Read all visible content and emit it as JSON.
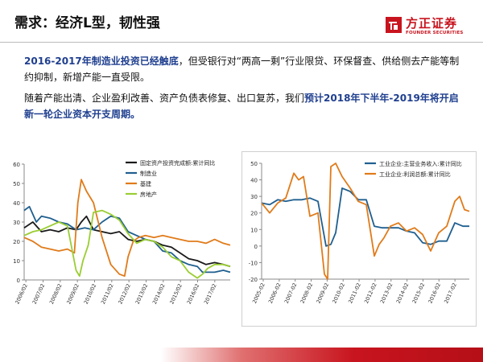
{
  "title": "需求：经济L型，韧性强",
  "logo": {
    "name": "方正证券",
    "en": "FOUNDER SECURITIES"
  },
  "paragraph1": {
    "highlight": "2016-2017年制造业投资已经触底",
    "text": "，但受银行对“两高一剩”行业限贷、环保督查、供给侧去产能等制约抑制，新增产能一直受限。"
  },
  "paragraph2": {
    "text": "随着产能出清、企业盈利改善、资产负债表修复、出口复苏，我们",
    "highlight": "预计2018年下半年-2019年将开启新一轮企业资本开支周期。"
  },
  "chart_data": [
    {
      "type": "line",
      "ylim": [
        0,
        60
      ],
      "yticks": [
        "0",
        "10",
        "20",
        "30",
        "40",
        "50",
        "60"
      ],
      "x_ticks": [
        "2006/02",
        "2007/02",
        "2008/02",
        "2009/02",
        "2010/02",
        "2011/02",
        "2012/02",
        "2013/02",
        "2014/02",
        "2015/02",
        "2016/02",
        "2017/02"
      ],
      "x_range": [
        2006.0,
        2017.9
      ],
      "series": [
        {
          "name": "固定资产投资完成额:累计同比",
          "color": "#1a1a1a",
          "x": [
            2006.0,
            2006.5,
            2007.0,
            2007.5,
            2008.0,
            2008.5,
            2009.0,
            2009.3,
            2009.6,
            2010.0,
            2010.5,
            2011.0,
            2011.5,
            2012.0,
            2012.5,
            2013.0,
            2013.5,
            2014.0,
            2014.5,
            2015.0,
            2015.5,
            2016.0,
            2016.5,
            2017.0,
            2017.5,
            2017.9
          ],
          "values": [
            27,
            30,
            25,
            26,
            25,
            27,
            26,
            30,
            33,
            26,
            25,
            24,
            25,
            21,
            20,
            21,
            20,
            18,
            17,
            14,
            11,
            10,
            8,
            9,
            8,
            7
          ]
        },
        {
          "name": "制造业",
          "color": "#1f5f8f",
          "x": [
            2006.0,
            2006.3,
            2006.7,
            2007.0,
            2007.5,
            2008.0,
            2008.5,
            2009.0,
            2009.5,
            2010.0,
            2010.5,
            2011.0,
            2011.5,
            2012.0,
            2012.5,
            2013.0,
            2013.5,
            2014.0,
            2014.5,
            2015.0,
            2015.5,
            2016.0,
            2016.3,
            2016.6,
            2017.0,
            2017.5,
            2017.9
          ],
          "values": [
            36,
            38,
            30,
            33,
            32,
            30,
            29,
            26,
            27,
            26,
            30,
            33,
            32,
            25,
            23,
            21,
            20,
            15,
            14,
            10,
            8,
            7,
            4,
            4,
            4,
            5,
            4
          ]
        },
        {
          "name": "基建",
          "color": "#e07b1a",
          "x": [
            2006.0,
            2006.5,
            2007.0,
            2007.5,
            2008.0,
            2008.5,
            2008.9,
            2009.1,
            2009.3,
            2009.6,
            2010.0,
            2010.5,
            2011.0,
            2011.5,
            2011.8,
            2012.0,
            2012.3,
            2012.6,
            2013.0,
            2013.5,
            2014.0,
            2014.5,
            2015.0,
            2015.5,
            2016.0,
            2016.5,
            2017.0,
            2017.5,
            2017.9
          ],
          "values": [
            22,
            20,
            17,
            16,
            15,
            16,
            14,
            40,
            52,
            46,
            40,
            22,
            8,
            3,
            2,
            12,
            20,
            22,
            23,
            22,
            23,
            22,
            21,
            20,
            20,
            19,
            21,
            19,
            18
          ]
        },
        {
          "name": "房地产",
          "color": "#9acd32",
          "x": [
            2006.0,
            2006.5,
            2007.0,
            2007.5,
            2008.0,
            2008.5,
            2009.0,
            2009.2,
            2009.4,
            2009.7,
            2010.0,
            2010.5,
            2011.0,
            2011.5,
            2012.0,
            2012.5,
            2013.0,
            2013.5,
            2014.0,
            2014.5,
            2015.0,
            2015.5,
            2016.0,
            2016.3,
            2016.6,
            2017.0,
            2017.5,
            2017.9
          ],
          "values": [
            23,
            25,
            26,
            28,
            30,
            28,
            5,
            2,
            10,
            18,
            35,
            36,
            34,
            31,
            24,
            19,
            21,
            20,
            17,
            12,
            10,
            4,
            1,
            3,
            6,
            8,
            8,
            7
          ]
        }
      ]
    },
    {
      "type": "line",
      "ylim": [
        -20,
        50
      ],
      "yticks": [
        "-20",
        "-10",
        "0",
        "10",
        "20",
        "30",
        "40",
        "50"
      ],
      "x_ticks": [
        "2005-02",
        "2006-02",
        "2007-02",
        "2008-02",
        "2009-02",
        "2010-02",
        "2011-02",
        "2012-02",
        "2013-02",
        "2014-02",
        "2015-02",
        "2016-02",
        "2017-02"
      ],
      "x_range": [
        2005.0,
        2017.9
      ],
      "series": [
        {
          "name": "工业企业:主营业务收入:累计同比",
          "color": "#1f5f8f",
          "x": [
            2005.0,
            2005.5,
            2006.0,
            2006.5,
            2007.0,
            2007.5,
            2008.0,
            2008.5,
            2009.0,
            2009.3,
            2009.6,
            2010.0,
            2010.5,
            2011.0,
            2011.5,
            2012.0,
            2012.5,
            2013.0,
            2013.5,
            2014.0,
            2014.5,
            2015.0,
            2015.5,
            2016.0,
            2016.5,
            2017.0,
            2017.5,
            2017.9
          ],
          "values": [
            26,
            25,
            28,
            27,
            28,
            28,
            29,
            27,
            0,
            1,
            8,
            35,
            33,
            28,
            28,
            12,
            11,
            11,
            11,
            9,
            8,
            2,
            1,
            3,
            3,
            14,
            12,
            12
          ]
        },
        {
          "name": "工业企业:利润总额:累计同比",
          "color": "#e07b1a",
          "x": [
            2005.0,
            2005.5,
            2006.0,
            2006.5,
            2007.0,
            2007.3,
            2007.6,
            2008.0,
            2008.5,
            2008.9,
            2009.1,
            2009.3,
            2009.6,
            2010.0,
            2010.5,
            2011.0,
            2011.5,
            2012.0,
            2012.3,
            2012.6,
            2013.0,
            2013.5,
            2014.0,
            2014.5,
            2015.0,
            2015.5,
            2016.0,
            2016.5,
            2017.0,
            2017.3,
            2017.6,
            2017.9
          ],
          "values": [
            26,
            20,
            26,
            29,
            44,
            40,
            42,
            18,
            20,
            -17,
            -20,
            48,
            50,
            42,
            35,
            27,
            25,
            -6,
            1,
            5,
            12,
            14,
            9,
            11,
            7,
            -3,
            8,
            12,
            27,
            30,
            22,
            21
          ]
        }
      ]
    }
  ]
}
